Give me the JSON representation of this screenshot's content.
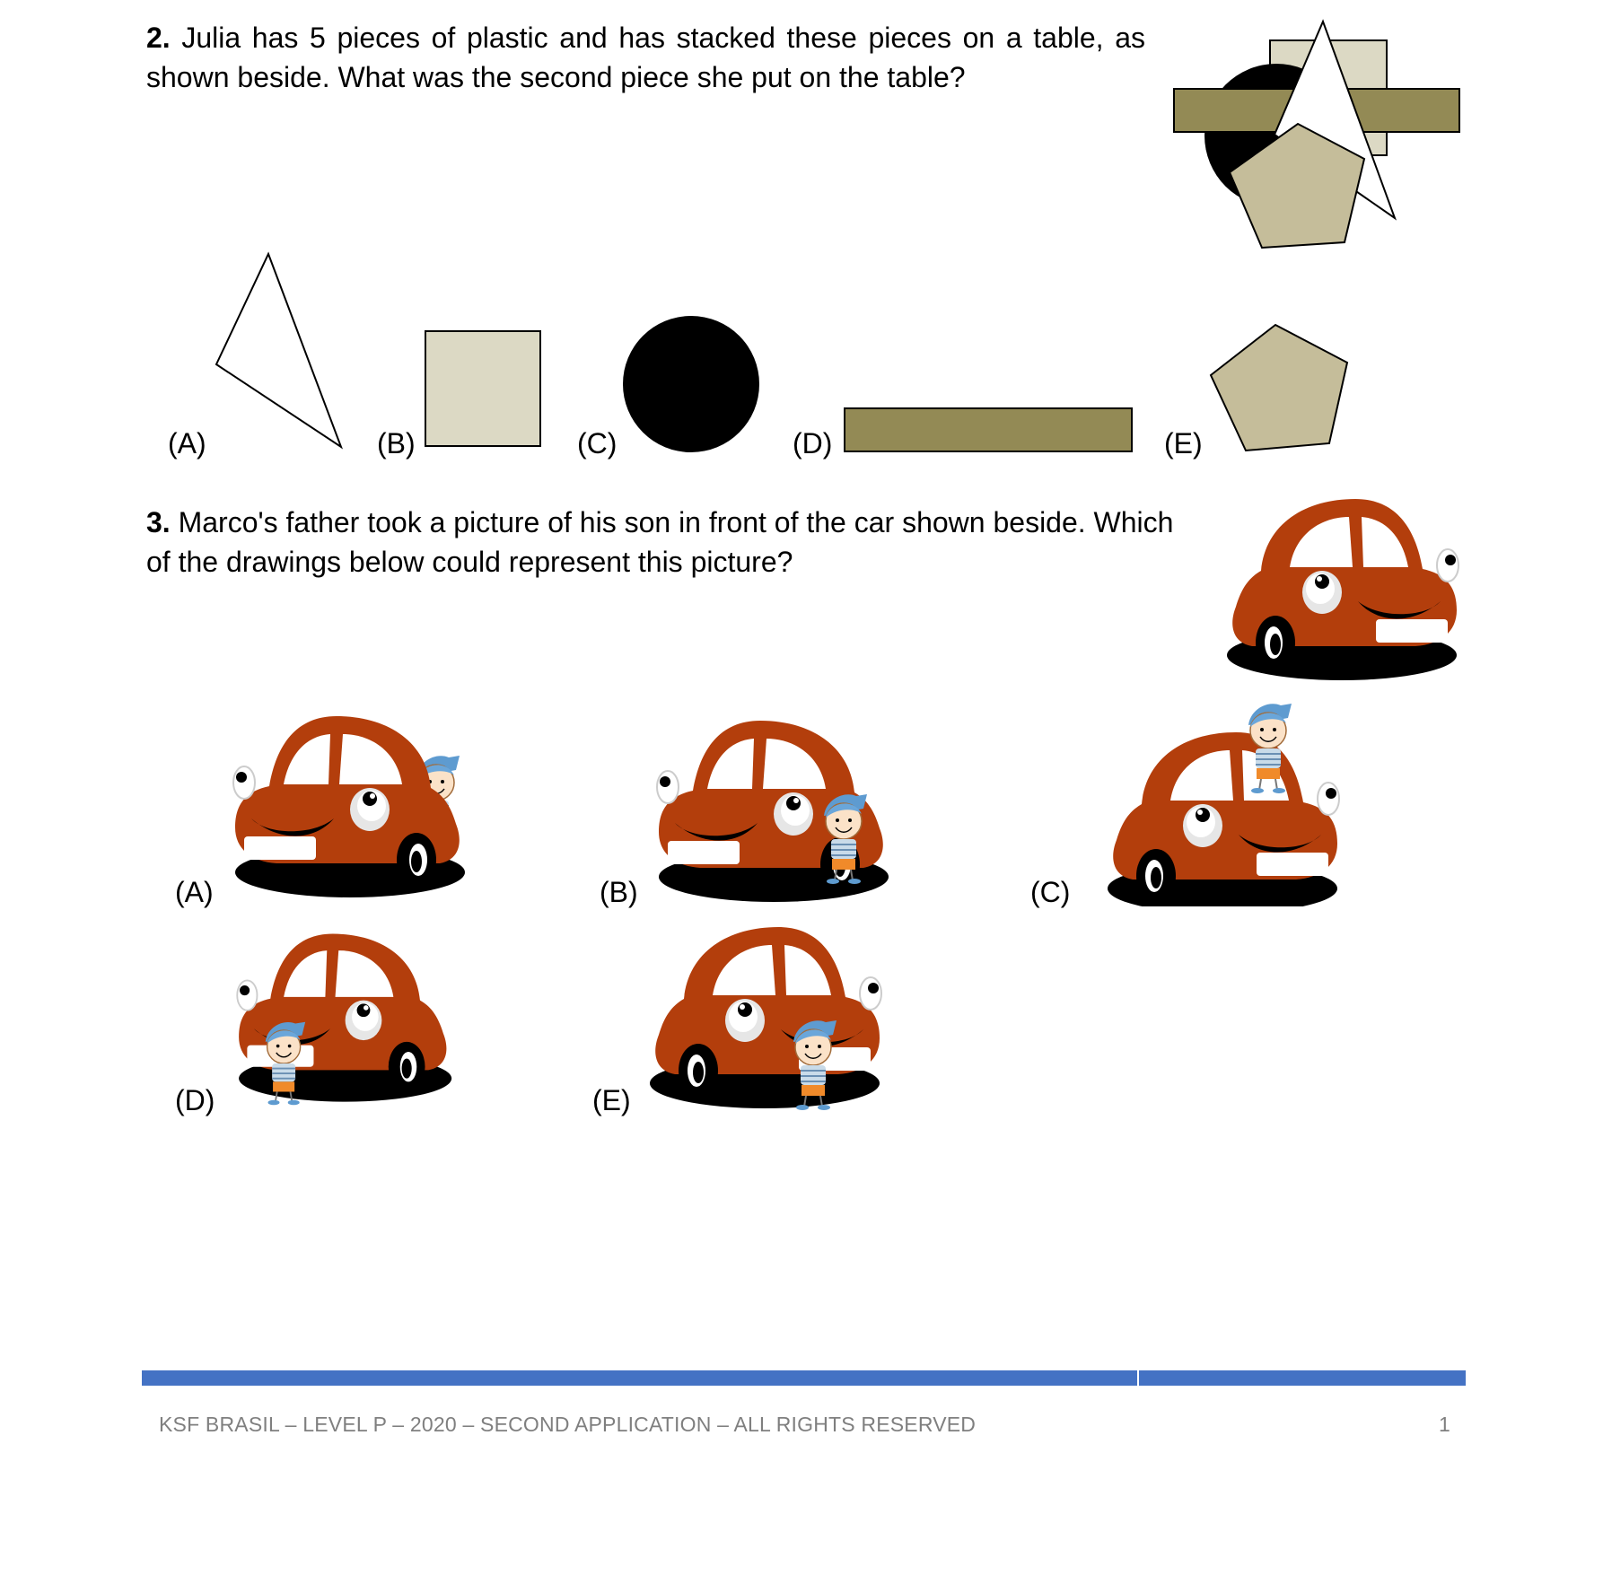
{
  "q2": {
    "number": "2.",
    "text": " Julia has 5 pieces of plastic and has stacked these pieces on a table, as shown beside. What was the second piece she put on the table?",
    "options": [
      {
        "label": "(A)",
        "shape": "triangle",
        "color": "#ffffff"
      },
      {
        "label": "(B)",
        "shape": "square",
        "color": "#dcd9c4"
      },
      {
        "label": "(C)",
        "shape": "circle",
        "color": "#000000"
      },
      {
        "label": "(D)",
        "shape": "rectangle",
        "color": "#938a55"
      },
      {
        "label": "(E)",
        "shape": "pentagon",
        "color": "#c5bd9a"
      }
    ]
  },
  "q3": {
    "number": "3.",
    "text": " Marco's father took a picture of his son in front of the car shown beside. Which of the drawings below could represent this picture?",
    "options": [
      {
        "label": "(A)"
      },
      {
        "label": "(B)"
      },
      {
        "label": "(C)"
      },
      {
        "label": "(D)"
      },
      {
        "label": "(E)"
      }
    ]
  },
  "colors": {
    "car_body": "#b33e0c",
    "footer_bar": "#4472c4",
    "footer_text": "#7f7f7f"
  },
  "footer": {
    "left": "KSF BRASIL – LEVEL P – 2020 – SECOND APPLICATION – ALL RIGHTS RESERVED",
    "page_number": "1"
  }
}
